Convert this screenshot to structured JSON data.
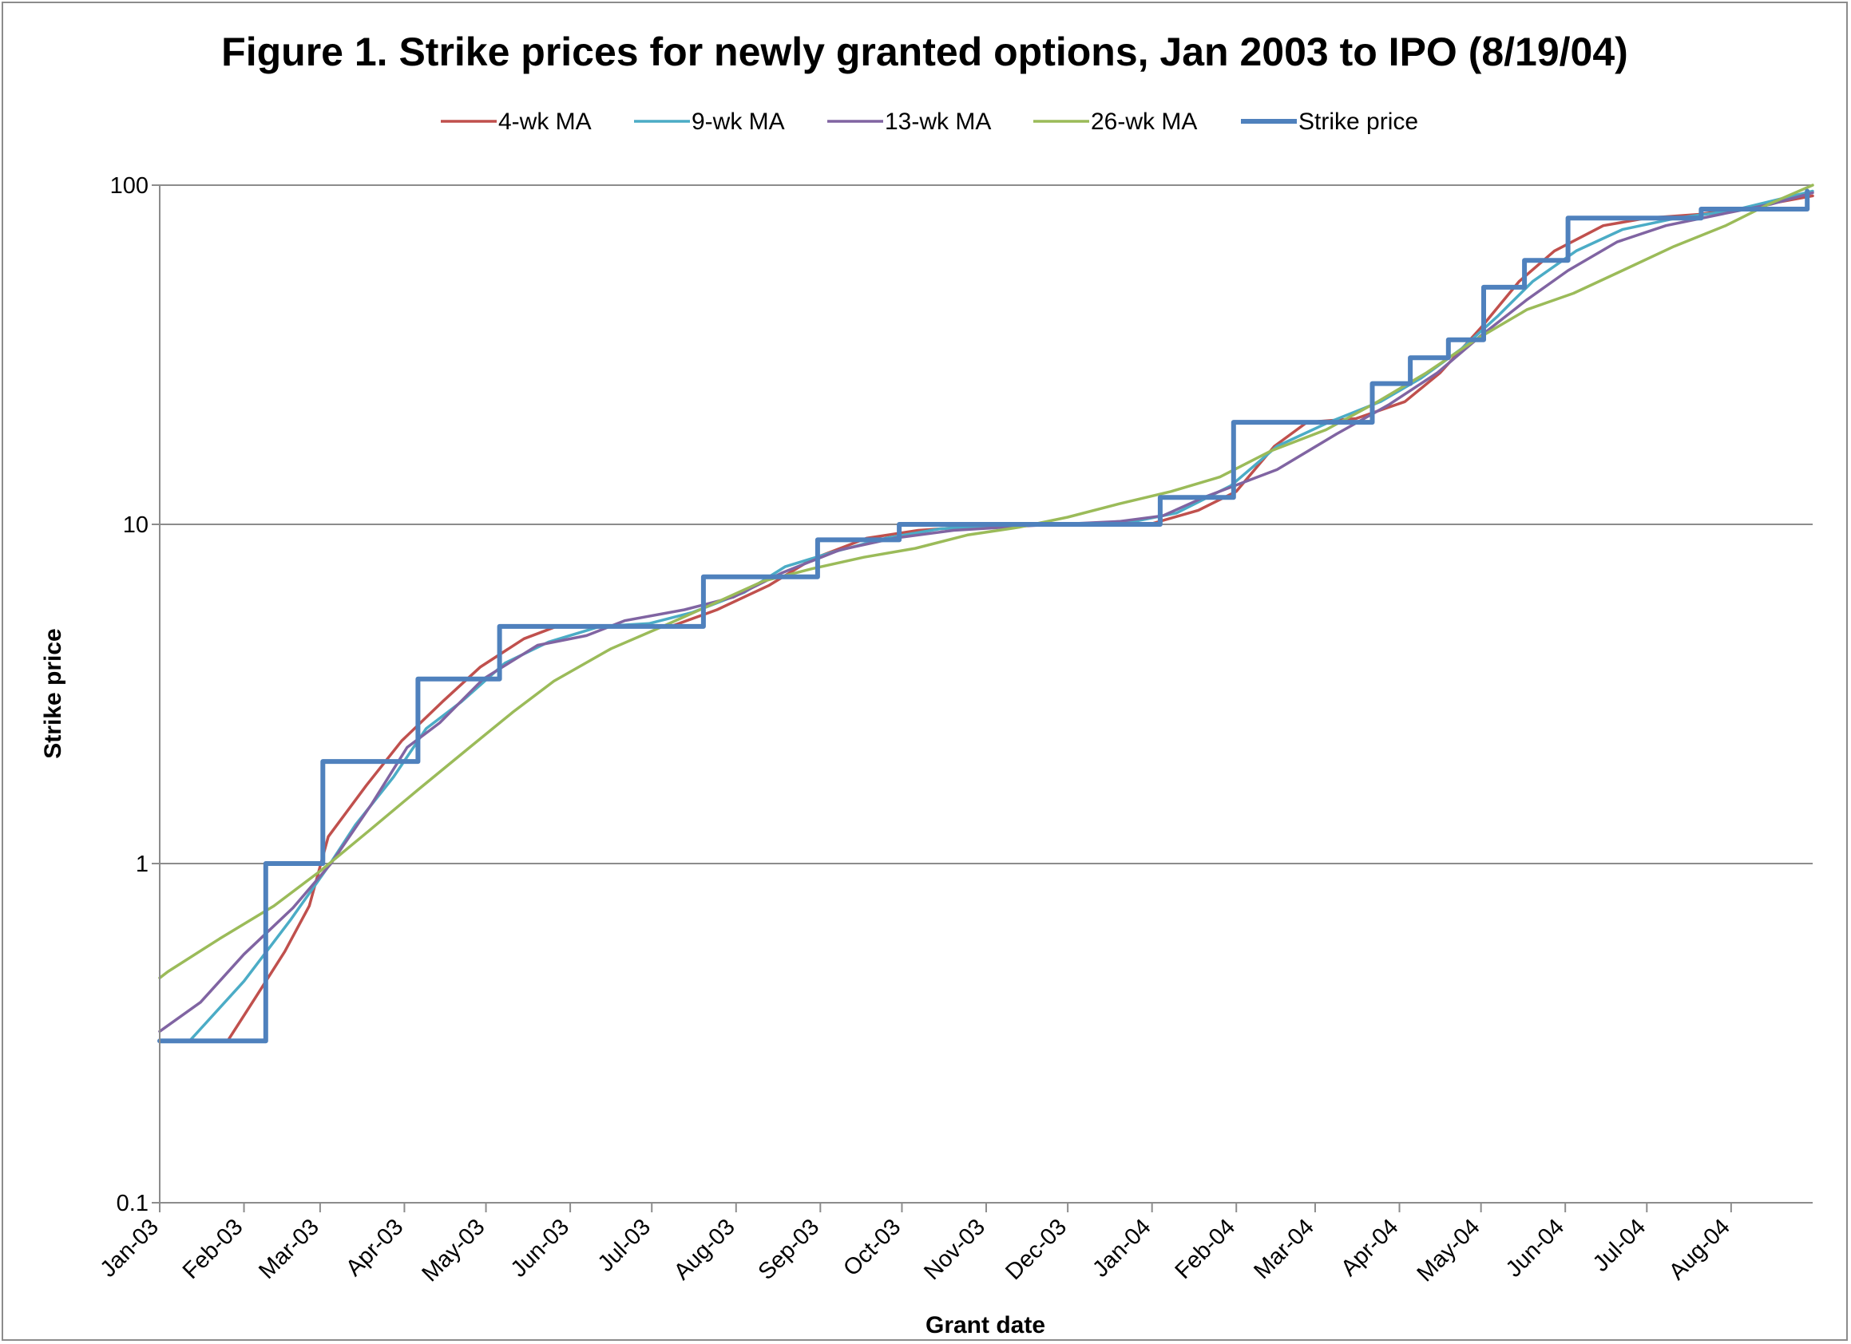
{
  "chart_data": {
    "type": "line",
    "title": "Figure 1.  Strike prices for newly granted options, Jan 2003 to IPO (8/19/04)",
    "xlabel": "Grant date",
    "ylabel": "Strike price",
    "yscale": "log",
    "ylim": [
      0.1,
      100
    ],
    "y_ticks": [
      {
        "value": 0.1,
        "label": "0.1"
      },
      {
        "value": 1,
        "label": "1"
      },
      {
        "value": 10,
        "label": "10"
      },
      {
        "value": 100,
        "label": "100"
      }
    ],
    "xlim": [
      "2003-01-01",
      "2004-08-31"
    ],
    "x_ticks": [
      {
        "date": "2003-01-01",
        "label": "Jan-03"
      },
      {
        "date": "2003-02-01",
        "label": "Feb-03"
      },
      {
        "date": "2003-03-01",
        "label": "Mar-03"
      },
      {
        "date": "2003-04-01",
        "label": "Apr-03"
      },
      {
        "date": "2003-05-01",
        "label": "May-03"
      },
      {
        "date": "2003-06-01",
        "label": "Jun-03"
      },
      {
        "date": "2003-07-01",
        "label": "Jul-03"
      },
      {
        "date": "2003-08-01",
        "label": "Aug-03"
      },
      {
        "date": "2003-09-01",
        "label": "Sep-03"
      },
      {
        "date": "2003-10-01",
        "label": "Oct-03"
      },
      {
        "date": "2003-11-01",
        "label": "Nov-03"
      },
      {
        "date": "2003-12-01",
        "label": "Dec-03"
      },
      {
        "date": "2004-01-01",
        "label": "Jan-04"
      },
      {
        "date": "2004-02-01",
        "label": "Feb-04"
      },
      {
        "date": "2004-03-01",
        "label": "Mar-04"
      },
      {
        "date": "2004-04-01",
        "label": "Apr-04"
      },
      {
        "date": "2004-05-01",
        "label": "May-04"
      },
      {
        "date": "2004-06-01",
        "label": "Jun-04"
      },
      {
        "date": "2004-07-01",
        "label": "Jul-04"
      },
      {
        "date": "2004-08-01",
        "label": "Aug-04"
      }
    ],
    "grid": "horizontal major",
    "legend_position": "top",
    "series": [
      {
        "name": "4-wk MA",
        "color": "#c0504d",
        "points": [
          [
            "2003-01-01",
            0.3
          ],
          [
            "2003-01-26",
            0.3
          ],
          [
            "2003-02-05",
            0.4
          ],
          [
            "2003-02-16",
            0.55
          ],
          [
            "2003-02-25",
            0.75
          ],
          [
            "2003-03-04",
            1.2
          ],
          [
            "2003-03-18",
            1.7
          ],
          [
            "2003-03-31",
            2.3
          ],
          [
            "2003-04-15",
            3.0
          ],
          [
            "2003-04-29",
            3.8
          ],
          [
            "2003-05-15",
            4.6
          ],
          [
            "2003-05-27",
            5.0
          ],
          [
            "2003-06-20",
            5.0
          ],
          [
            "2003-07-08",
            5.0
          ],
          [
            "2003-07-25",
            5.6
          ],
          [
            "2003-08-13",
            6.6
          ],
          [
            "2003-08-29",
            7.9
          ],
          [
            "2003-09-18",
            9.1
          ],
          [
            "2003-10-07",
            9.6
          ],
          [
            "2003-10-31",
            9.9
          ],
          [
            "2003-12-01",
            10.0
          ],
          [
            "2003-12-31",
            10.0
          ],
          [
            "2004-01-18",
            11.0
          ],
          [
            "2004-02-01",
            12.5
          ],
          [
            "2004-02-15",
            17.0
          ],
          [
            "2004-02-27",
            20.0
          ],
          [
            "2004-03-16",
            20.5
          ],
          [
            "2004-04-03",
            23.0
          ],
          [
            "2004-04-16",
            28.0
          ],
          [
            "2004-05-01",
            38.0
          ],
          [
            "2004-05-15",
            52.0
          ],
          [
            "2004-05-28",
            64.0
          ],
          [
            "2004-06-15",
            76.0
          ],
          [
            "2004-07-01",
            80.0
          ],
          [
            "2004-07-20",
            82.0
          ],
          [
            "2004-08-08",
            86.0
          ],
          [
            "2004-08-31",
            93.0
          ]
        ]
      },
      {
        "name": "9-wk MA",
        "color": "#4bacc6",
        "points": [
          [
            "2003-01-01",
            0.3
          ],
          [
            "2003-01-12",
            0.3
          ],
          [
            "2003-02-01",
            0.45
          ],
          [
            "2003-02-18",
            0.68
          ],
          [
            "2003-03-04",
            0.98
          ],
          [
            "2003-03-14",
            1.3
          ],
          [
            "2003-03-28",
            1.8
          ],
          [
            "2003-04-09",
            2.5
          ],
          [
            "2003-04-22",
            3.0
          ],
          [
            "2003-05-08",
            3.9
          ],
          [
            "2003-05-24",
            4.5
          ],
          [
            "2003-06-12",
            5.0
          ],
          [
            "2003-06-30",
            5.1
          ],
          [
            "2003-07-16",
            5.5
          ],
          [
            "2003-08-04",
            6.3
          ],
          [
            "2003-08-19",
            7.5
          ],
          [
            "2003-09-06",
            8.3
          ],
          [
            "2003-09-25",
            9.1
          ],
          [
            "2003-10-15",
            9.7
          ],
          [
            "2003-11-10",
            10.0
          ],
          [
            "2003-12-20",
            10.0
          ],
          [
            "2004-01-10",
            10.8
          ],
          [
            "2004-01-30",
            13.0
          ],
          [
            "2004-02-16",
            17.0
          ],
          [
            "2004-03-06",
            20.0
          ],
          [
            "2004-03-25",
            23.0
          ],
          [
            "2004-04-09",
            27.0
          ],
          [
            "2004-04-24",
            33.0
          ],
          [
            "2004-05-07",
            41.0
          ],
          [
            "2004-05-20",
            52.0
          ],
          [
            "2004-06-05",
            64.0
          ],
          [
            "2004-06-22",
            74.0
          ],
          [
            "2004-07-12",
            80.0
          ],
          [
            "2004-08-01",
            84.0
          ],
          [
            "2004-08-31",
            96.0
          ]
        ]
      },
      {
        "name": "13-wk MA",
        "color": "#8064a2",
        "points": [
          [
            "2003-01-01",
            0.32
          ],
          [
            "2003-01-16",
            0.39
          ],
          [
            "2003-02-01",
            0.54
          ],
          [
            "2003-02-19",
            0.74
          ],
          [
            "2003-03-05",
            1.0
          ],
          [
            "2003-03-20",
            1.5
          ],
          [
            "2003-04-02",
            2.2
          ],
          [
            "2003-04-14",
            2.6
          ],
          [
            "2003-04-30",
            3.5
          ],
          [
            "2003-05-20",
            4.4
          ],
          [
            "2003-06-07",
            4.7
          ],
          [
            "2003-06-21",
            5.2
          ],
          [
            "2003-07-13",
            5.6
          ],
          [
            "2003-07-31",
            6.1
          ],
          [
            "2003-08-18",
            7.2
          ],
          [
            "2003-09-08",
            8.4
          ],
          [
            "2003-09-28",
            9.1
          ],
          [
            "2003-10-20",
            9.6
          ],
          [
            "2003-11-16",
            9.9
          ],
          [
            "2003-12-20",
            10.2
          ],
          [
            "2004-01-05",
            10.6
          ],
          [
            "2004-01-20",
            12.0
          ],
          [
            "2004-02-16",
            14.5
          ],
          [
            "2004-03-09",
            18.5
          ],
          [
            "2004-03-28",
            22.5
          ],
          [
            "2004-04-15",
            28.0
          ],
          [
            "2004-05-01",
            36.0
          ],
          [
            "2004-05-18",
            46.0
          ],
          [
            "2004-06-02",
            56.0
          ],
          [
            "2004-06-20",
            68.0
          ],
          [
            "2004-07-08",
            76.0
          ],
          [
            "2004-07-28",
            82.0
          ],
          [
            "2004-08-16",
            88.0
          ],
          [
            "2004-08-31",
            95.0
          ]
        ]
      },
      {
        "name": "26-wk MA",
        "color": "#9bbb59",
        "points": [
          [
            "2003-01-01",
            0.46
          ],
          [
            "2003-01-04",
            0.48
          ],
          [
            "2003-01-23",
            0.6
          ],
          [
            "2003-02-12",
            0.75
          ],
          [
            "2003-03-01",
            0.95
          ],
          [
            "2003-03-19",
            1.25
          ],
          [
            "2003-04-06",
            1.65
          ],
          [
            "2003-04-25",
            2.2
          ],
          [
            "2003-05-11",
            2.8
          ],
          [
            "2003-05-26",
            3.45
          ],
          [
            "2003-06-16",
            4.3
          ],
          [
            "2003-07-05",
            5.0
          ],
          [
            "2003-07-23",
            5.8
          ],
          [
            "2003-08-11",
            6.8
          ],
          [
            "2003-08-29",
            7.4
          ],
          [
            "2003-09-17",
            8.0
          ],
          [
            "2003-10-06",
            8.5
          ],
          [
            "2003-10-25",
            9.3
          ],
          [
            "2003-11-13",
            9.8
          ],
          [
            "2003-12-01",
            10.5
          ],
          [
            "2003-12-20",
            11.5
          ],
          [
            "2004-01-08",
            12.5
          ],
          [
            "2004-01-26",
            13.8
          ],
          [
            "2004-02-14",
            16.5
          ],
          [
            "2004-03-05",
            19.0
          ],
          [
            "2004-03-24",
            23.0
          ],
          [
            "2004-04-11",
            28.0
          ],
          [
            "2004-04-29",
            35.0
          ],
          [
            "2004-05-18",
            43.0
          ],
          [
            "2004-06-04",
            48.0
          ],
          [
            "2004-06-22",
            56.0
          ],
          [
            "2004-07-11",
            66.0
          ],
          [
            "2004-07-30",
            76.0
          ],
          [
            "2004-08-15",
            88.0
          ],
          [
            "2004-08-31",
            100.0
          ]
        ]
      },
      {
        "name": "Strike price",
        "color": "#4f81bd",
        "step": true,
        "points": [
          [
            "2003-01-01",
            0.3
          ],
          [
            "2003-02-09",
            0.3
          ],
          [
            "2003-02-09",
            1.0
          ],
          [
            "2003-03-02",
            1.0
          ],
          [
            "2003-03-02",
            2.0
          ],
          [
            "2003-04-06",
            2.0
          ],
          [
            "2003-04-06",
            3.5
          ],
          [
            "2003-05-06",
            3.5
          ],
          [
            "2003-05-06",
            5.0
          ],
          [
            "2003-07-20",
            5.0
          ],
          [
            "2003-07-20",
            7.0
          ],
          [
            "2003-08-31",
            7.0
          ],
          [
            "2003-08-31",
            9.0
          ],
          [
            "2003-09-30",
            9.0
          ],
          [
            "2003-09-30",
            10.0
          ],
          [
            "2004-01-04",
            10.0
          ],
          [
            "2004-01-04",
            12.0
          ],
          [
            "2004-01-31",
            12.0
          ],
          [
            "2004-01-31",
            20.0
          ],
          [
            "2004-03-22",
            20.0
          ],
          [
            "2004-03-22",
            26.0
          ],
          [
            "2004-04-05",
            26.0
          ],
          [
            "2004-04-05",
            31.0
          ],
          [
            "2004-04-19",
            31.0
          ],
          [
            "2004-04-19",
            35.0
          ],
          [
            "2004-05-02",
            35.0
          ],
          [
            "2004-05-02",
            50.0
          ],
          [
            "2004-05-17",
            50.0
          ],
          [
            "2004-05-17",
            60.0
          ],
          [
            "2004-06-02",
            60.0
          ],
          [
            "2004-06-02",
            80.0
          ],
          [
            "2004-07-21",
            80.0
          ],
          [
            "2004-07-21",
            85.0
          ],
          [
            "2004-08-29",
            85.0
          ],
          [
            "2004-08-29",
            96.0
          ]
        ]
      }
    ]
  }
}
